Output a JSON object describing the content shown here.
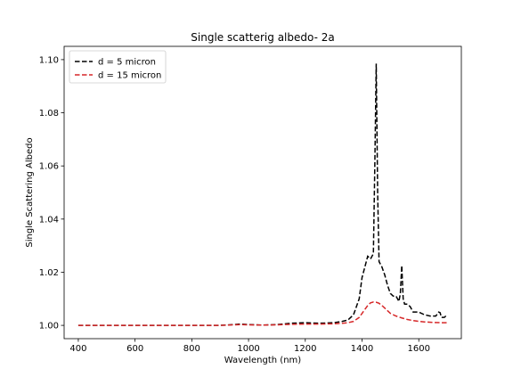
{
  "chart_data": {
    "type": "line",
    "title": "Single scatterig albedo- 2a",
    "xlabel": "Wavelength (nm)",
    "ylabel": "Single Scattering Albedo",
    "xlim": [
      350,
      1750
    ],
    "ylim": [
      0.995,
      1.105
    ],
    "xticks": [
      400,
      600,
      800,
      1000,
      1200,
      1400,
      1600
    ],
    "yticks": [
      1.0,
      1.02,
      1.04,
      1.06,
      1.08,
      1.1
    ],
    "ytick_labels": [
      "1.00",
      "1.02",
      "1.04",
      "1.06",
      "1.08",
      "1.10"
    ],
    "grid": false,
    "legend_position": "upper-left",
    "series": [
      {
        "name": "d = 5 micron",
        "color": "#000000",
        "linestyle": "dashed",
        "x": [
          400,
          500,
          600,
          700,
          800,
          900,
          950,
          970,
          1000,
          1050,
          1100,
          1150,
          1200,
          1250,
          1300,
          1330,
          1350,
          1370,
          1390,
          1400,
          1410,
          1420,
          1430,
          1440,
          1445,
          1450,
          1455,
          1460,
          1470,
          1480,
          1490,
          1500,
          1510,
          1520,
          1530,
          1535,
          1540,
          1545,
          1550,
          1560,
          1570,
          1580,
          1600,
          1620,
          1640,
          1660,
          1670,
          1675,
          1680,
          1690,
          1700
        ],
        "y": [
          1.0,
          1.0,
          1.0,
          1.0,
          1.0,
          1.0,
          1.0003,
          1.0005,
          1.0003,
          1.0001,
          1.0003,
          1.0008,
          1.001,
          1.0008,
          1.001,
          1.0015,
          1.002,
          1.004,
          1.01,
          1.018,
          1.022,
          1.026,
          1.025,
          1.027,
          1.06,
          1.0985,
          1.05,
          1.024,
          1.022,
          1.019,
          1.015,
          1.012,
          1.011,
          1.011,
          1.009,
          1.012,
          1.0225,
          1.01,
          1.008,
          1.008,
          1.007,
          1.005,
          1.005,
          1.004,
          1.0035,
          1.0035,
          1.005,
          1.0048,
          1.003,
          1.003,
          1.004
        ]
      },
      {
        "name": "d = 15 micron",
        "color": "#d62728",
        "linestyle": "dashed",
        "x": [
          400,
          500,
          600,
          700,
          800,
          900,
          950,
          970,
          1000,
          1050,
          1100,
          1150,
          1200,
          1250,
          1300,
          1330,
          1350,
          1370,
          1390,
          1400,
          1410,
          1420,
          1430,
          1440,
          1450,
          1460,
          1470,
          1480,
          1490,
          1500,
          1520,
          1540,
          1560,
          1580,
          1600,
          1620,
          1650,
          1680,
          1700
        ],
        "y": [
          1.0,
          1.0,
          1.0,
          1.0,
          1.0,
          1.0,
          1.0002,
          1.0003,
          1.0002,
          1.0001,
          1.0002,
          1.0004,
          1.0005,
          1.0005,
          1.0006,
          1.0008,
          1.001,
          1.0015,
          1.003,
          1.0045,
          1.006,
          1.0075,
          1.0085,
          1.0088,
          1.0087,
          1.0083,
          1.0075,
          1.0065,
          1.0055,
          1.0045,
          1.0035,
          1.0028,
          1.0022,
          1.0018,
          1.0015,
          1.0013,
          1.0011,
          1.001,
          1.001
        ]
      }
    ]
  }
}
